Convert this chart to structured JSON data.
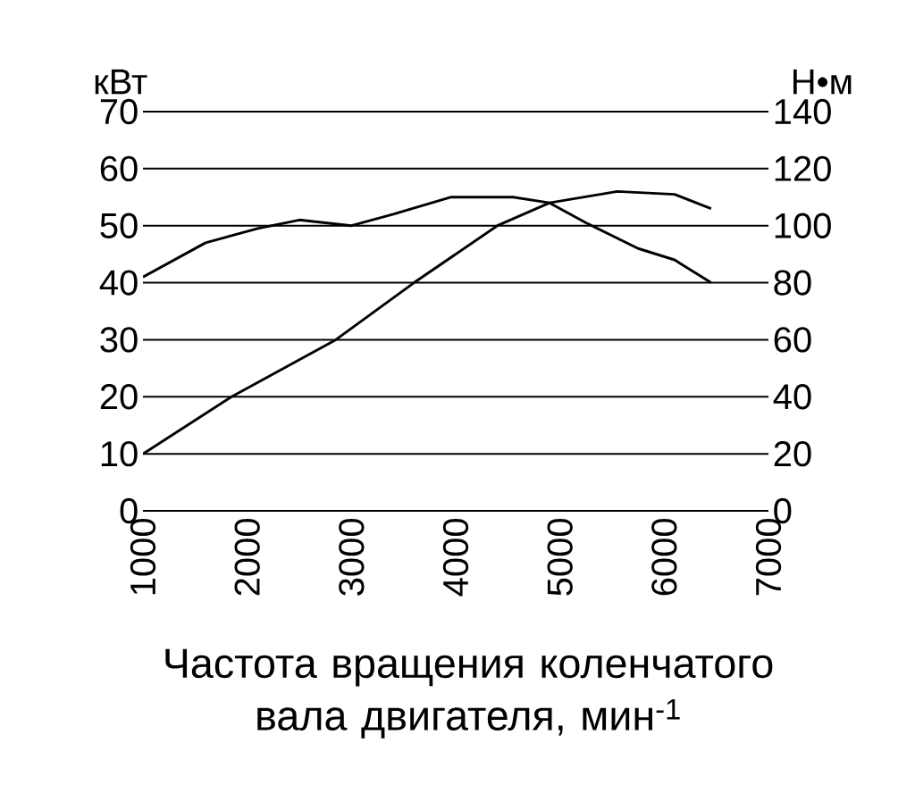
{
  "chart_data": {
    "type": "line",
    "xlabel": "Частота вращения коленчатого вала двигателя,  мин$^{-1}$",
    "ylabel": "кВт",
    "y2label": "Н•м",
    "xlim": [
      1000,
      7000
    ],
    "xticks": [
      1000,
      2000,
      3000,
      4000,
      5000,
      6000,
      7000
    ],
    "ylim": [
      0,
      70
    ],
    "yticks": [
      0,
      10,
      20,
      30,
      40,
      50,
      60,
      70
    ],
    "y2lim": [
      0,
      140
    ],
    "y2ticks": [
      0,
      20,
      40,
      60,
      80,
      100,
      120,
      140
    ],
    "grid": "y",
    "line_style": "solid",
    "series": [
      {
        "color": "#000000",
        "x": [
          1000,
          1850,
          2850,
          3600,
          4400,
          4900,
          5550,
          6100,
          6450
        ],
        "values": [
          10,
          20,
          30,
          40,
          50,
          54,
          56,
          55.5,
          53
        ]
      },
      {
        "color": "#000000",
        "axis": "y2",
        "x": [
          1000,
          1600,
          2100,
          2500,
          3000,
          3400,
          3950,
          4550,
          4900,
          5250,
          5750,
          6100,
          6450
        ],
        "values": [
          82,
          94,
          99,
          102,
          100,
          104,
          110,
          110,
          108,
          101,
          92,
          88,
          80
        ]
      }
    ]
  }
}
